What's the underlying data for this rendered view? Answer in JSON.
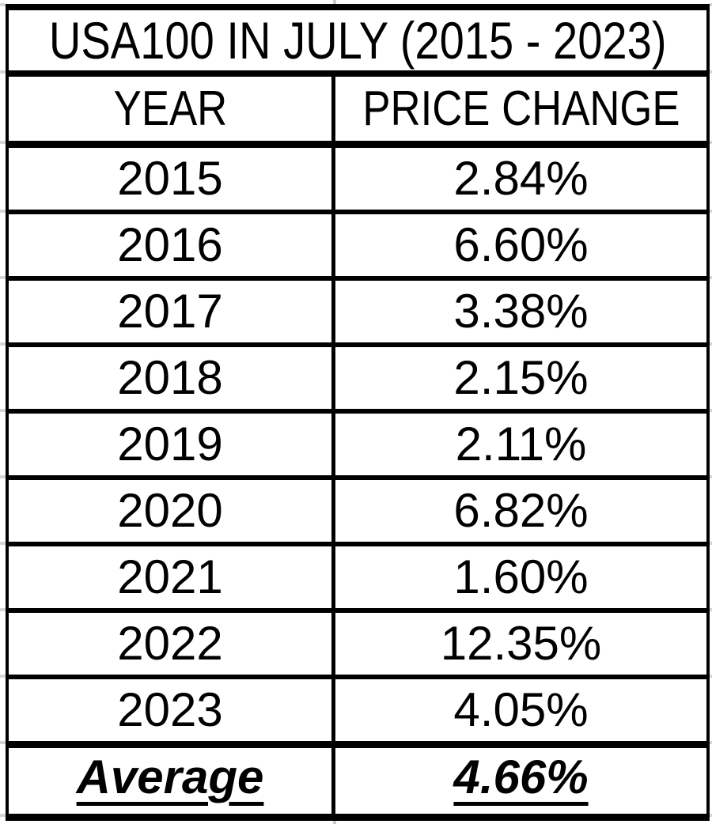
{
  "table": {
    "title": "USA100 IN JULY (2015 - 2023)",
    "columns": {
      "year": "YEAR",
      "price_change": "PRICE CHANGE"
    },
    "rows": [
      {
        "year": "2015",
        "price_change": "2.84%"
      },
      {
        "year": "2016",
        "price_change": "6.60%"
      },
      {
        "year": "2017",
        "price_change": "3.38%"
      },
      {
        "year": "2018",
        "price_change": "2.15%"
      },
      {
        "year": "2019",
        "price_change": "2.11%"
      },
      {
        "year": "2020",
        "price_change": "6.82%"
      },
      {
        "year": "2021",
        "price_change": "1.60%"
      },
      {
        "year": "2022",
        "price_change": "12.35%"
      },
      {
        "year": "2023",
        "price_change": "4.05%"
      }
    ],
    "summary": {
      "label": "Average",
      "value": "4.66%"
    }
  },
  "colors": {
    "border": "#000000",
    "background": "#ffffff",
    "gridline_stub": "#d6d6d6"
  },
  "chart_data": {
    "type": "table",
    "title": "USA100 IN JULY (2015 - 2023)",
    "columns": [
      "YEAR",
      "PRICE CHANGE"
    ],
    "categories": [
      "2015",
      "2016",
      "2017",
      "2018",
      "2019",
      "2020",
      "2021",
      "2022",
      "2023"
    ],
    "values": [
      2.84,
      6.6,
      3.38,
      2.15,
      2.11,
      6.82,
      1.6,
      12.35,
      4.05
    ],
    "value_unit": "%",
    "summary": {
      "label": "Average",
      "value": 4.66
    }
  }
}
